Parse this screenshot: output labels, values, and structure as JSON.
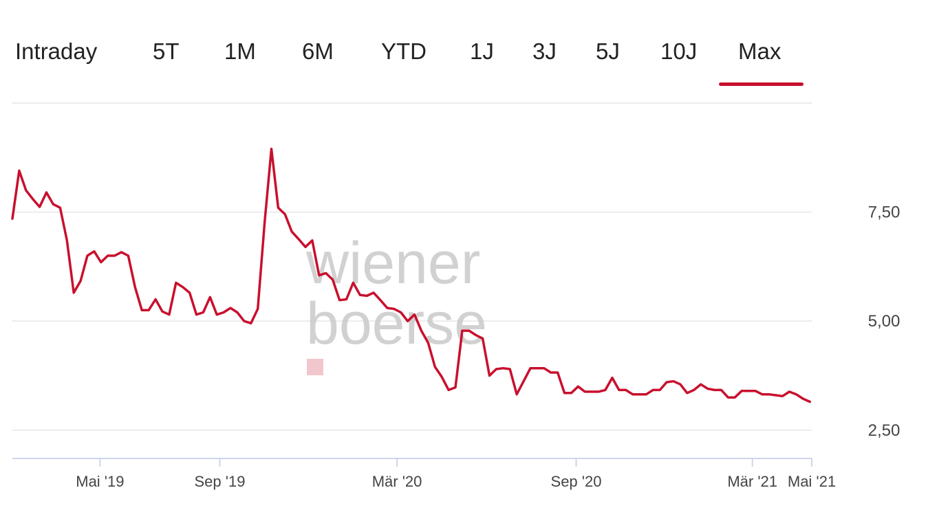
{
  "tabs": [
    {
      "label": "Intraday",
      "active": false
    },
    {
      "label": "5T",
      "active": false
    },
    {
      "label": "1M",
      "active": false
    },
    {
      "label": "6M",
      "active": false
    },
    {
      "label": "YTD",
      "active": false
    },
    {
      "label": "1J",
      "active": false
    },
    {
      "label": "3J",
      "active": false
    },
    {
      "label": "5J",
      "active": false
    },
    {
      "label": "10J",
      "active": false
    },
    {
      "label": "Max",
      "active": true
    }
  ],
  "colors": {
    "accent": "#c8102e",
    "grid": "#e6e6e6",
    "axis": "#ccd6eb",
    "watermark": "#c9c9c9",
    "watermark_square": "#f2c6cd"
  },
  "watermark": {
    "line1": "wiener",
    "line2": "boerse"
  },
  "chart_data": {
    "type": "line",
    "title": "",
    "xlabel": "",
    "ylabel": "",
    "ylim": [
      1.85,
      10.0
    ],
    "y_ticks": [
      "7,50",
      "5,00",
      "2,50"
    ],
    "y_tick_values": [
      7.5,
      5.0,
      2.5
    ],
    "x_ticks": [
      "Mai '19",
      "Sep '19",
      "Mär '20",
      "Sep '20",
      "Mär '21",
      "Mai '21"
    ],
    "x_tick_dates": [
      "2019-05-01",
      "2019-09-01",
      "2020-03-01",
      "2020-09-01",
      "2021-03-01",
      "2021-05-01"
    ],
    "x_range": [
      "2019-01-31",
      "2021-05-01"
    ],
    "grid": true,
    "series": [
      {
        "color": "#c8102e",
        "points": [
          [
            "2019-01-31",
            7.35
          ],
          [
            "2019-02-07",
            8.45
          ],
          [
            "2019-02-14",
            8.0
          ],
          [
            "2019-02-21",
            7.8
          ],
          [
            "2019-02-28",
            7.62
          ],
          [
            "2019-03-07",
            7.95
          ],
          [
            "2019-03-14",
            7.68
          ],
          [
            "2019-03-21",
            7.6
          ],
          [
            "2019-03-28",
            6.85
          ],
          [
            "2019-04-04",
            5.65
          ],
          [
            "2019-04-11",
            5.92
          ],
          [
            "2019-04-18",
            6.5
          ],
          [
            "2019-04-25",
            6.6
          ],
          [
            "2019-05-02",
            6.35
          ],
          [
            "2019-05-09",
            6.5
          ],
          [
            "2019-05-16",
            6.5
          ],
          [
            "2019-05-23",
            6.58
          ],
          [
            "2019-05-30",
            6.5
          ],
          [
            "2019-06-06",
            5.78
          ],
          [
            "2019-06-13",
            5.25
          ],
          [
            "2019-06-20",
            5.25
          ],
          [
            "2019-06-27",
            5.5
          ],
          [
            "2019-07-04",
            5.22
          ],
          [
            "2019-07-11",
            5.15
          ],
          [
            "2019-07-18",
            5.88
          ],
          [
            "2019-07-25",
            5.78
          ],
          [
            "2019-08-01",
            5.65
          ],
          [
            "2019-08-08",
            5.15
          ],
          [
            "2019-08-15",
            5.2
          ],
          [
            "2019-08-22",
            5.55
          ],
          [
            "2019-08-29",
            5.15
          ],
          [
            "2019-09-05",
            5.2
          ],
          [
            "2019-09-12",
            5.3
          ],
          [
            "2019-09-19",
            5.2
          ],
          [
            "2019-09-26",
            5.0
          ],
          [
            "2019-10-03",
            4.95
          ],
          [
            "2019-10-10",
            5.28
          ],
          [
            "2019-10-17",
            7.25
          ],
          [
            "2019-10-24",
            8.95
          ],
          [
            "2019-10-31",
            7.6
          ],
          [
            "2019-11-07",
            7.45
          ],
          [
            "2019-11-14",
            7.05
          ],
          [
            "2019-11-21",
            6.88
          ],
          [
            "2019-11-28",
            6.7
          ],
          [
            "2019-12-05",
            6.85
          ],
          [
            "2019-12-12",
            6.05
          ],
          [
            "2019-12-19",
            6.1
          ],
          [
            "2019-12-26",
            5.95
          ],
          [
            "2020-01-02",
            5.48
          ],
          [
            "2020-01-09",
            5.5
          ],
          [
            "2020-01-16",
            5.88
          ],
          [
            "2020-01-23",
            5.6
          ],
          [
            "2020-01-30",
            5.58
          ],
          [
            "2020-02-06",
            5.65
          ],
          [
            "2020-02-13",
            5.48
          ],
          [
            "2020-02-20",
            5.3
          ],
          [
            "2020-02-27",
            5.28
          ],
          [
            "2020-03-05",
            5.2
          ],
          [
            "2020-03-12",
            5.0
          ],
          [
            "2020-03-19",
            5.15
          ],
          [
            "2020-03-26",
            4.78
          ],
          [
            "2020-04-02",
            4.5
          ],
          [
            "2020-04-09",
            3.95
          ],
          [
            "2020-04-16",
            3.72
          ],
          [
            "2020-04-23",
            3.42
          ],
          [
            "2020-04-30",
            3.48
          ],
          [
            "2020-05-07",
            4.78
          ],
          [
            "2020-05-14",
            4.78
          ],
          [
            "2020-05-21",
            4.68
          ],
          [
            "2020-05-28",
            4.6
          ],
          [
            "2020-06-04",
            3.75
          ],
          [
            "2020-06-11",
            3.9
          ],
          [
            "2020-06-18",
            3.92
          ],
          [
            "2020-06-25",
            3.9
          ],
          [
            "2020-07-02",
            3.32
          ],
          [
            "2020-07-09",
            3.62
          ],
          [
            "2020-07-16",
            3.92
          ],
          [
            "2020-07-23",
            3.92
          ],
          [
            "2020-07-30",
            3.92
          ],
          [
            "2020-08-06",
            3.82
          ],
          [
            "2020-08-13",
            3.82
          ],
          [
            "2020-08-20",
            3.35
          ],
          [
            "2020-08-27",
            3.35
          ],
          [
            "2020-09-03",
            3.5
          ],
          [
            "2020-09-10",
            3.38
          ],
          [
            "2020-09-17",
            3.38
          ],
          [
            "2020-09-24",
            3.38
          ],
          [
            "2020-10-01",
            3.42
          ],
          [
            "2020-10-08",
            3.7
          ],
          [
            "2020-10-15",
            3.42
          ],
          [
            "2020-10-22",
            3.42
          ],
          [
            "2020-10-29",
            3.32
          ],
          [
            "2020-11-05",
            3.32
          ],
          [
            "2020-11-12",
            3.32
          ],
          [
            "2020-11-19",
            3.42
          ],
          [
            "2020-11-26",
            3.42
          ],
          [
            "2020-12-03",
            3.6
          ],
          [
            "2020-12-10",
            3.62
          ],
          [
            "2020-12-17",
            3.55
          ],
          [
            "2020-12-24",
            3.35
          ],
          [
            "2020-12-31",
            3.42
          ],
          [
            "2021-01-07",
            3.55
          ],
          [
            "2021-01-14",
            3.45
          ],
          [
            "2021-01-21",
            3.42
          ],
          [
            "2021-01-28",
            3.42
          ],
          [
            "2021-02-04",
            3.25
          ],
          [
            "2021-02-11",
            3.25
          ],
          [
            "2021-02-18",
            3.4
          ],
          [
            "2021-02-25",
            3.4
          ],
          [
            "2021-03-04",
            3.4
          ],
          [
            "2021-03-11",
            3.32
          ],
          [
            "2021-03-18",
            3.32
          ],
          [
            "2021-03-25",
            3.3
          ],
          [
            "2021-04-01",
            3.28
          ],
          [
            "2021-04-08",
            3.38
          ],
          [
            "2021-04-15",
            3.32
          ],
          [
            "2021-04-22",
            3.22
          ],
          [
            "2021-04-29",
            3.15
          ]
        ]
      }
    ]
  }
}
